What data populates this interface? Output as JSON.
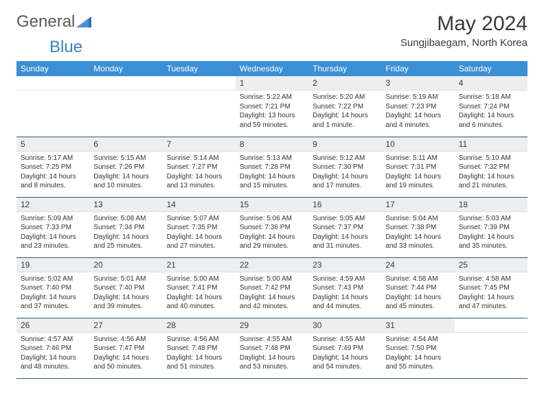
{
  "logo": {
    "part1": "General",
    "part2": "Blue"
  },
  "title": "May 2024",
  "location": "Sungjibaegam, North Korea",
  "colors": {
    "header_bg": "#3b8fd4",
    "header_fg": "#ffffff",
    "daynum_bg": "#eceef0",
    "row_border": "#2a5a8a",
    "text": "#333333",
    "logo_gray": "#5a5a5a",
    "logo_blue": "#3b7fc4"
  },
  "weekdays": [
    "Sunday",
    "Monday",
    "Tuesday",
    "Wednesday",
    "Thursday",
    "Friday",
    "Saturday"
  ],
  "weeks": [
    [
      null,
      null,
      null,
      {
        "n": "1",
        "sunrise": "5:22 AM",
        "sunset": "7:21 PM",
        "daylight": "13 hours and 59 minutes."
      },
      {
        "n": "2",
        "sunrise": "5:20 AM",
        "sunset": "7:22 PM",
        "daylight": "14 hours and 1 minute."
      },
      {
        "n": "3",
        "sunrise": "5:19 AM",
        "sunset": "7:23 PM",
        "daylight": "14 hours and 4 minutes."
      },
      {
        "n": "4",
        "sunrise": "5:18 AM",
        "sunset": "7:24 PM",
        "daylight": "14 hours and 6 minutes."
      }
    ],
    [
      {
        "n": "5",
        "sunrise": "5:17 AM",
        "sunset": "7:25 PM",
        "daylight": "14 hours and 8 minutes."
      },
      {
        "n": "6",
        "sunrise": "5:15 AM",
        "sunset": "7:26 PM",
        "daylight": "14 hours and 10 minutes."
      },
      {
        "n": "7",
        "sunrise": "5:14 AM",
        "sunset": "7:27 PM",
        "daylight": "14 hours and 13 minutes."
      },
      {
        "n": "8",
        "sunrise": "5:13 AM",
        "sunset": "7:28 PM",
        "daylight": "14 hours and 15 minutes."
      },
      {
        "n": "9",
        "sunrise": "5:12 AM",
        "sunset": "7:30 PM",
        "daylight": "14 hours and 17 minutes."
      },
      {
        "n": "10",
        "sunrise": "5:11 AM",
        "sunset": "7:31 PM",
        "daylight": "14 hours and 19 minutes."
      },
      {
        "n": "11",
        "sunrise": "5:10 AM",
        "sunset": "7:32 PM",
        "daylight": "14 hours and 21 minutes."
      }
    ],
    [
      {
        "n": "12",
        "sunrise": "5:09 AM",
        "sunset": "7:33 PM",
        "daylight": "14 hours and 23 minutes."
      },
      {
        "n": "13",
        "sunrise": "5:08 AM",
        "sunset": "7:34 PM",
        "daylight": "14 hours and 25 minutes."
      },
      {
        "n": "14",
        "sunrise": "5:07 AM",
        "sunset": "7:35 PM",
        "daylight": "14 hours and 27 minutes."
      },
      {
        "n": "15",
        "sunrise": "5:06 AM",
        "sunset": "7:36 PM",
        "daylight": "14 hours and 29 minutes."
      },
      {
        "n": "16",
        "sunrise": "5:05 AM",
        "sunset": "7:37 PM",
        "daylight": "14 hours and 31 minutes."
      },
      {
        "n": "17",
        "sunrise": "5:04 AM",
        "sunset": "7:38 PM",
        "daylight": "14 hours and 33 minutes."
      },
      {
        "n": "18",
        "sunrise": "5:03 AM",
        "sunset": "7:39 PM",
        "daylight": "14 hours and 35 minutes."
      }
    ],
    [
      {
        "n": "19",
        "sunrise": "5:02 AM",
        "sunset": "7:40 PM",
        "daylight": "14 hours and 37 minutes."
      },
      {
        "n": "20",
        "sunrise": "5:01 AM",
        "sunset": "7:40 PM",
        "daylight": "14 hours and 39 minutes."
      },
      {
        "n": "21",
        "sunrise": "5:00 AM",
        "sunset": "7:41 PM",
        "daylight": "14 hours and 40 minutes."
      },
      {
        "n": "22",
        "sunrise": "5:00 AM",
        "sunset": "7:42 PM",
        "daylight": "14 hours and 42 minutes."
      },
      {
        "n": "23",
        "sunrise": "4:59 AM",
        "sunset": "7:43 PM",
        "daylight": "14 hours and 44 minutes."
      },
      {
        "n": "24",
        "sunrise": "4:58 AM",
        "sunset": "7:44 PM",
        "daylight": "14 hours and 45 minutes."
      },
      {
        "n": "25",
        "sunrise": "4:58 AM",
        "sunset": "7:45 PM",
        "daylight": "14 hours and 47 minutes."
      }
    ],
    [
      {
        "n": "26",
        "sunrise": "4:57 AM",
        "sunset": "7:46 PM",
        "daylight": "14 hours and 48 minutes."
      },
      {
        "n": "27",
        "sunrise": "4:56 AM",
        "sunset": "7:47 PM",
        "daylight": "14 hours and 50 minutes."
      },
      {
        "n": "28",
        "sunrise": "4:56 AM",
        "sunset": "7:48 PM",
        "daylight": "14 hours and 51 minutes."
      },
      {
        "n": "29",
        "sunrise": "4:55 AM",
        "sunset": "7:48 PM",
        "daylight": "14 hours and 53 minutes."
      },
      {
        "n": "30",
        "sunrise": "4:55 AM",
        "sunset": "7:49 PM",
        "daylight": "14 hours and 54 minutes."
      },
      {
        "n": "31",
        "sunrise": "4:54 AM",
        "sunset": "7:50 PM",
        "daylight": "14 hours and 55 minutes."
      },
      null
    ]
  ],
  "labels": {
    "sunrise": "Sunrise:",
    "sunset": "Sunset:",
    "daylight": "Daylight:"
  }
}
